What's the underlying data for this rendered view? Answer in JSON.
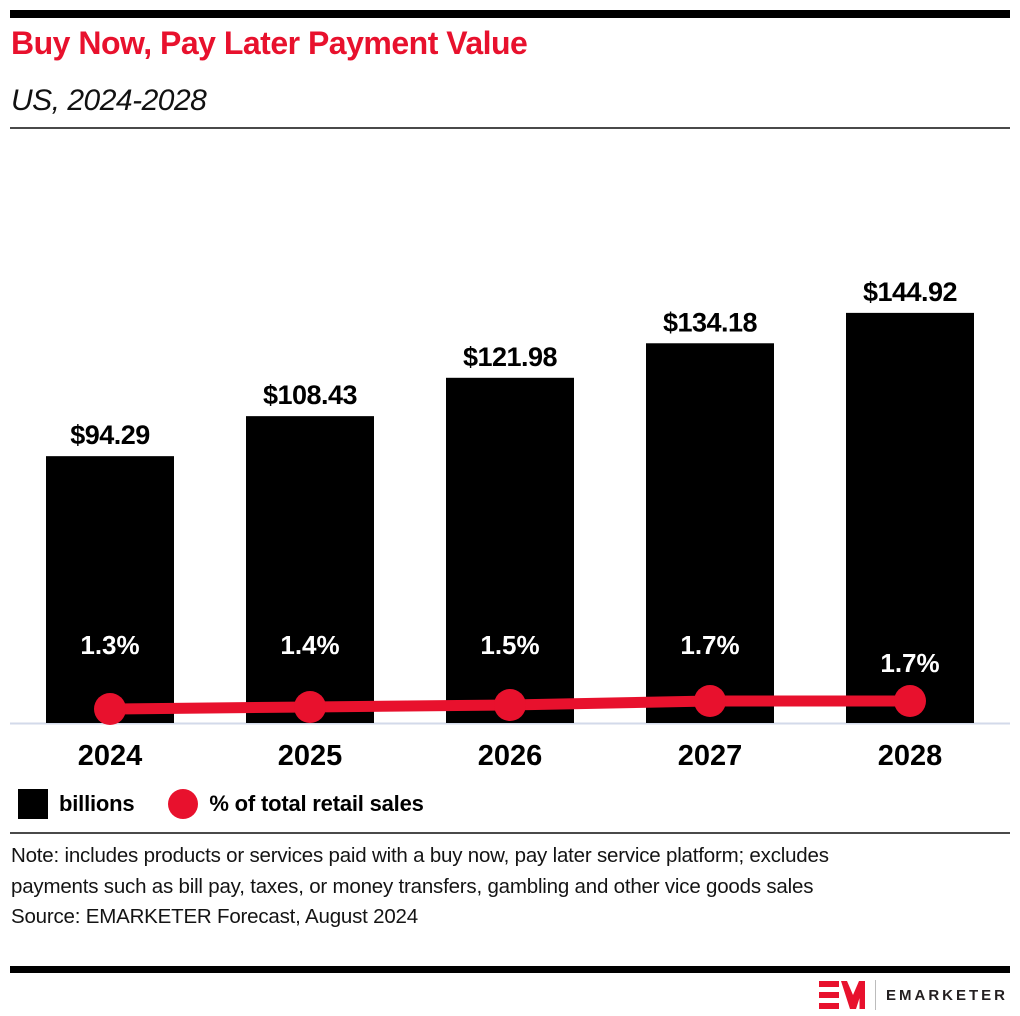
{
  "header": {
    "title": "Buy Now, Pay Later Payment Value",
    "subtitle": "US, 2024-2028"
  },
  "chart_data": {
    "type": "bar",
    "subtype": "bar-and-line-combo",
    "categories": [
      "2024",
      "2025",
      "2026",
      "2027",
      "2028"
    ],
    "series": [
      {
        "name": "billions",
        "type": "bar",
        "values": [
          94.29,
          108.43,
          121.98,
          134.18,
          144.92
        ],
        "labels": [
          "$94.29",
          "$108.43",
          "$121.98",
          "$134.18",
          "$144.92"
        ],
        "color": "#000000"
      },
      {
        "name": "% of total retail sales",
        "type": "line",
        "values": [
          1.3,
          1.4,
          1.5,
          1.7,
          1.7
        ],
        "labels": [
          "1.3%",
          "1.4%",
          "1.5%",
          "1.7%",
          "1.7%"
        ],
        "color": "#e8112d"
      }
    ],
    "title": "Buy Now, Pay Later Payment Value",
    "subtitle": "US, 2024-2028",
    "xlabel": "",
    "ylabel": "",
    "axes_visible": false,
    "grid": false,
    "legend_position": "bottom-left",
    "legend": [
      {
        "label": "billions",
        "swatch": "black-square",
        "color": "#000000"
      },
      {
        "label": "% of total retail sales",
        "swatch": "red-circle",
        "color": "#e8112d"
      }
    ]
  },
  "footnote": {
    "note": "Note: includes products or services paid with a buy now, pay later service platform; excludes payments such as bill pay, taxes, or money transfers, gambling and other vice goods sales",
    "source": "Source: EMARKETER Forecast, August 2024"
  },
  "branding": {
    "logo_mark": "EM",
    "logo_text": "EMARKETER"
  },
  "colors": {
    "accent_red": "#e8112d",
    "bar_black": "#000000",
    "axis_line": "#d3daea",
    "rule_gray": "#4a4a4a"
  }
}
